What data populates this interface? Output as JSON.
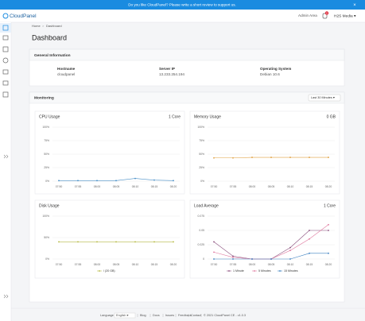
{
  "banner": {
    "text": "Do you like CloudPanel? Please write a short review to support us.",
    "close": "×"
  },
  "header": {
    "logo": "CloudPanel",
    "admin": "Admin Area",
    "badge": "0",
    "user": "H2S Media ▾"
  },
  "breadcrumb": {
    "home": "Home",
    "sep": ">",
    "current": "Dashboard"
  },
  "page_title": "Dashboard",
  "general_info": {
    "title": "General Information",
    "items": [
      {
        "label": "Hostname",
        "value": "cloudpanel"
      },
      {
        "label": "Server IP",
        "value": "13.233.254.194"
      },
      {
        "label": "Operating System",
        "value": "Debian 10.6"
      }
    ]
  },
  "monitoring": {
    "title": "Monitoring",
    "range": "Last 30 Minutes ▾"
  },
  "chart_data": [
    {
      "type": "line",
      "title": "CPU Usage",
      "subtitle": "1 Core",
      "categories": [
        "07:50",
        "07:55",
        "08:00",
        "08:05",
        "08:10",
        "08:15",
        "08:20"
      ],
      "ylim": [
        0,
        100
      ],
      "yticks": [
        {
          "value": 0,
          "label": "0%"
        },
        {
          "value": 25,
          "label": "25%"
        },
        {
          "value": 50,
          "label": "50%"
        },
        {
          "value": 75,
          "label": "75%"
        },
        {
          "value": 100,
          "label": "100%"
        }
      ],
      "series": [
        {
          "color": "#4a90c8",
          "values": [
            1,
            1,
            1,
            1,
            5,
            2,
            1
          ]
        }
      ]
    },
    {
      "type": "line",
      "title": "Memory Usage",
      "subtitle": "0 GB",
      "categories": [
        "07:50",
        "07:55",
        "08:00",
        "08:05",
        "08:10",
        "08:15",
        "08:20"
      ],
      "ylim": [
        0,
        100
      ],
      "yticks": [
        {
          "value": 0,
          "label": "0%"
        },
        {
          "value": 25,
          "label": "25%"
        },
        {
          "value": 50,
          "label": "50%"
        },
        {
          "value": 75,
          "label": "75%"
        },
        {
          "value": 100,
          "label": "100%"
        }
      ],
      "series": [
        {
          "color": "#e0a040",
          "values": [
            43,
            43,
            44,
            44,
            44,
            44,
            44
          ]
        }
      ]
    },
    {
      "type": "line",
      "title": "Disk Usage",
      "categories": [
        "07:50",
        "07:55",
        "08:00",
        "08:05",
        "08:10",
        "08:15",
        "08:20"
      ],
      "ylim": [
        0,
        100
      ],
      "yticks": [
        {
          "value": 0,
          "label": "0%"
        },
        {
          "value": 50,
          "label": "50%"
        },
        {
          "value": 100,
          "label": "100%"
        }
      ],
      "series": [
        {
          "name": "/ (20 GB)",
          "color": "#b5b840",
          "values": [
            40,
            40,
            40,
            40,
            40,
            40,
            40
          ]
        }
      ]
    },
    {
      "type": "line",
      "title": "Load Average",
      "subtitle": "1 Core",
      "categories": [
        "07:50",
        "07:55",
        "08:00",
        "08:05",
        "08:10",
        "08:15",
        "08:20"
      ],
      "ylim": [
        0,
        0.075
      ],
      "yticks": [
        0,
        0.025,
        0.05,
        0.075
      ],
      "series": [
        {
          "name": "1 Minute",
          "color": "#8a4f7d",
          "values": [
            0.03,
            0.005,
            0,
            0,
            0.02,
            0.05,
            0.05
          ]
        },
        {
          "name": "5 Minutes",
          "color": "#e07aa0",
          "values": [
            0.012,
            0.003,
            0,
            0,
            0.015,
            0.035,
            0.06
          ]
        },
        {
          "name": "15 Minutes",
          "color": "#3a7fc0",
          "values": [
            0,
            0,
            0,
            0,
            0,
            0.01,
            0.01
          ]
        }
      ]
    }
  ],
  "footer": {
    "language": "Language",
    "lang_value": "English ▾",
    "links": [
      "Blog",
      "Docs",
      "Issues",
      "Feedback",
      "Contact"
    ],
    "copyright": "© 2021 CloudPanel CE - v1.0.3"
  }
}
